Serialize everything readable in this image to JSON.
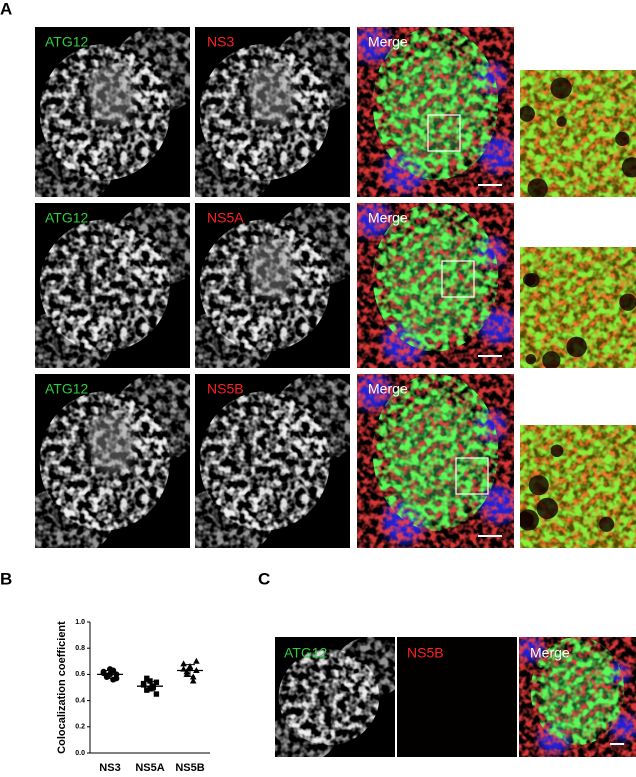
{
  "panel_a": {
    "label": "A",
    "rows": [
      {
        "channel1": "ATG12",
        "channel2": "NS3",
        "merge": "Merge"
      },
      {
        "channel1": "ATG12",
        "channel2": "NS5A",
        "merge": "Merge"
      },
      {
        "channel1": "ATG12",
        "channel2": "NS5B",
        "merge": "Merge"
      }
    ]
  },
  "chart_data": {
    "type": "scatter",
    "panel_label": "B",
    "y_label": "Colocalization coefficient",
    "categories": [
      "NS3",
      "NS5A",
      "NS5B"
    ],
    "values": [
      [
        0.62,
        0.58,
        0.6,
        0.63,
        0.57,
        0.61,
        0.59,
        0.64,
        0.56,
        0.6
      ],
      [
        0.52,
        0.48,
        0.55,
        0.5,
        0.45,
        0.53,
        0.57,
        0.49,
        0.51,
        0.54
      ],
      [
        0.68,
        0.62,
        0.66,
        0.58,
        0.7,
        0.64,
        0.6,
        0.65,
        0.55,
        0.63
      ]
    ],
    "means": [
      0.6,
      0.51,
      0.63
    ],
    "errors": [
      0.03,
      0.035,
      0.045
    ],
    "markers": [
      "circle",
      "square",
      "triangle"
    ],
    "color": "#000000",
    "ylim": [
      0,
      1.0
    ],
    "yticks": [
      {
        "value": 0,
        "label": "0.0"
      },
      {
        "value": 0.2,
        "label": "0.2"
      },
      {
        "value": 0.4,
        "label": "0.4"
      },
      {
        "value": 0.6,
        "label": "0.6"
      },
      {
        "value": 0.8,
        "label": "0.8"
      },
      {
        "value": 1.0,
        "label": "1.0"
      }
    ]
  },
  "panel_c": {
    "label": "C",
    "channel1": "ATG12",
    "channel2": "NS5B",
    "merge": "Merge"
  }
}
